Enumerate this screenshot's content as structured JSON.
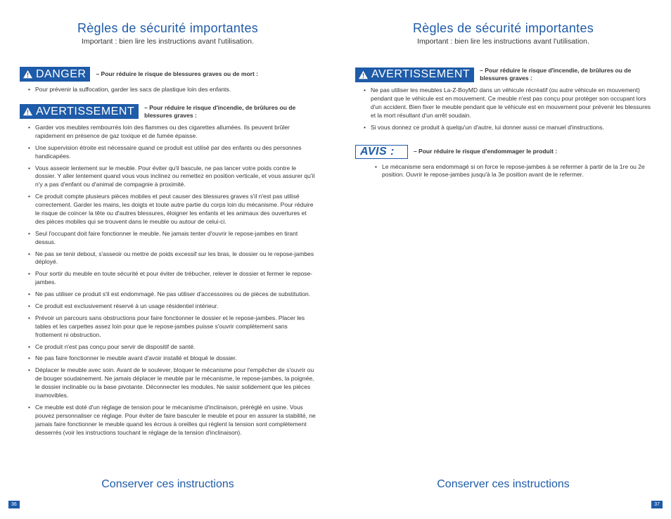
{
  "colors": {
    "brand_blue": "#1e5ba8",
    "text_dark": "#333333",
    "background": "#ffffff",
    "white": "#ffffff"
  },
  "typography": {
    "title_fontsize": 18,
    "subtitle_fontsize": 10.5,
    "warning_label_fontsize": 16,
    "body_fontsize": 8.5,
    "footer_fontsize": 16
  },
  "left_page": {
    "title": "Règles de sécurité importantes",
    "subtitle": "Important : bien lire les instructions avant l'utilisation.",
    "danger": {
      "label": "DANGER",
      "desc": "– Pour réduire le risque de blessures graves ou de mort :",
      "items": [
        "Pour prévenir la suffocation, garder les sacs de plastique loin des enfants."
      ]
    },
    "warning": {
      "label": "AVERTISSEMENT",
      "desc": "– Pour réduire le risque d'incendie, de brûlures ou de blessures graves :",
      "items": [
        "Garder vos meubles rembourrés loin des flammes ou des cigarettes allumées. Ils peuvent brûler rapidement en présence de gaz toxique et de fumée épaisse.",
        "Une supervision étroite est nécessaire quand ce produit est utilisé par des enfants ou des personnes handicapées.",
        "Vous asseoir lentement sur le meuble. Pour éviter qu'il bascule, ne pas lancer votre poids contre le dossier. Y aller lentement quand vous vous inclinez ou remettez en position verticale, et vous assurer qu'il n'y a pas d'enfant ou d'animal de compagnie à proximité.",
        "Ce produit compte plusieurs pièces mobiles et peut causer des blessures graves s'il n'est pas utilisé correctement. Garder les mains, les doigts et toute autre partie du corps loin du mécanisme. Pour réduire le risque de coincer la tête ou d'autres blessures, éloigner les enfants et les animaux des ouvertures et des pièces mobiles qui se trouvent dans le meuble ou autour de celui-ci.",
        "Seul l'occupant doit faire fonctionner le meuble. Ne jamais tenter d'ouvrir le repose-jambes en tirant dessus.",
        "Ne pas se tenir debout, s'asseoir ou mettre de poids excessif sur les bras, le dossier ou le repose-jambes déployé.",
        "Pour sortir du meuble en toute sécurité et pour éviter de trébucher, relever le dossier et fermer le repose-jambes.",
        "Ne pas utiliser ce produit s'il est endommagé. Ne pas utiliser d'accessoires ou de pièces de substitution.",
        "Ce produit est exclusivement réservé à un usage résidentiel intérieur.",
        "Prévoir un parcours sans obstructions pour faire fonctionner le dossier et le repose-jambes. Placer les tables et les carpettes assez loin pour que le repose-jambes puisse s'ouvrir complètement sans frottement ni obstruction.",
        "Ce produit n'est pas conçu pour servir de dispositif de santé.",
        "Ne pas faire fonctionner le meuble avant d'avoir installé et bloqué le dossier.",
        "Déplacer le meuble avec soin. Avant de le soulever, bloquer le mécanisme pour l'empêcher de s'ouvrir ou de bouger soudainement. Ne jamais déplacer le meuble par le mécanisme, le repose-jambes, la poignée, le dossier inclinable ou la base pivotante. Déconnecter les modules. Ne saisir solidement que les pièces inamovibles.",
        "Ce meuble est doté d'un réglage de tension pour le mécanisme d'inclinaison, préréglé en usine. Vous pouvez personnaliser ce réglage. Pour éviter de faire basculer le meuble et pour en assurer la stabilité, ne jamais faire fonctionner le meuble quand les écrous à oreilles qui règlent la tension sont complètement desserrés (voir les instructions touchant le réglage de la tension d'inclinaison)."
      ]
    },
    "footer": "Conserver ces instructions",
    "page_number": "36"
  },
  "right_page": {
    "title": "Règles de sécurité importantes",
    "subtitle": "Important : bien lire les instructions avant l'utilisation.",
    "warning": {
      "label": "AVERTISSEMENT",
      "desc": "– Pour réduire le risque d'incendie, de brûlures ou de blessures graves :",
      "items": [
        "Ne pas utiliser les meubles La-Z-BoyMD dans un véhicule récréatif (ou autre véhicule en mouvement) pendant que le véhicule est en mouvement. Ce meuble n'est pas conçu pour protéger son occupant lors d'un accident. Bien fixer le meuble pendant que le véhicule est en mouvement pour prévenir les blessures et la mort résultant d'un arrêt soudain.",
        "Si vous donnez ce produit à quelqu'un d'autre, lui donner aussi ce manuel d'instructions."
      ]
    },
    "notice": {
      "label": "AVIS :",
      "desc": "– Pour réduire le risque d'endommager le produit :",
      "items": [
        "Le mécanisme sera endommagé si on force le repose-jambes à se refermer à partir de la 1re ou 2e position. Ouvrir le repose-jambes jusqu'à la 3e position avant de le refermer."
      ]
    },
    "footer": "Conserver ces instructions",
    "page_number": "37"
  }
}
